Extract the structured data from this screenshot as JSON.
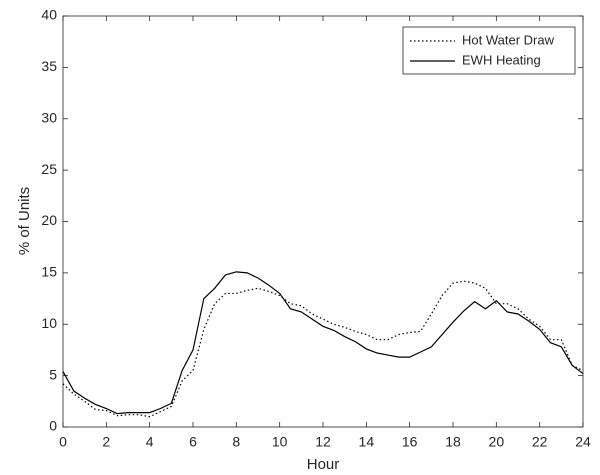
{
  "chart_data": {
    "type": "line",
    "xlabel": "Hour",
    "ylabel": "% of Units",
    "x": [
      0,
      0.5,
      1,
      1.5,
      2,
      2.5,
      3,
      3.5,
      4,
      4.5,
      5,
      5.5,
      6,
      6.5,
      7,
      7.5,
      8,
      8.5,
      9,
      9.5,
      10,
      10.5,
      11,
      11.5,
      12,
      12.5,
      13,
      13.5,
      14,
      14.5,
      15,
      15.5,
      16,
      16.5,
      17,
      17.5,
      18,
      18.5,
      19,
      19.5,
      20,
      20.5,
      21,
      21.5,
      22,
      22.5,
      23,
      23.5,
      24
    ],
    "series": [
      {
        "name": "Hot Water Draw",
        "color": "#000000",
        "style": "dotted",
        "values": [
          4.2,
          3.2,
          2.5,
          1.7,
          1.6,
          1.1,
          1.2,
          1.2,
          1.0,
          1.5,
          2.0,
          4.5,
          5.5,
          9.5,
          12.0,
          13.0,
          13.0,
          13.3,
          13.5,
          13.2,
          12.8,
          12.0,
          11.8,
          11.0,
          10.5,
          10.0,
          9.7,
          9.3,
          9.0,
          8.5,
          8.5,
          9.0,
          9.2,
          9.3,
          11.0,
          12.8,
          14.0,
          14.2,
          14.0,
          13.5,
          12.0,
          12.0,
          11.5,
          10.5,
          9.8,
          8.5,
          8.5,
          6.0,
          5.5
        ]
      },
      {
        "name": "EWH Heating",
        "color": "#000000",
        "style": "solid",
        "values": [
          5.4,
          3.5,
          2.8,
          2.2,
          1.8,
          1.3,
          1.4,
          1.4,
          1.4,
          1.8,
          2.3,
          5.5,
          7.5,
          12.5,
          13.5,
          14.8,
          15.1,
          15.0,
          14.5,
          13.8,
          13.0,
          11.5,
          11.2,
          10.5,
          9.8,
          9.4,
          8.8,
          8.3,
          7.6,
          7.2,
          7.0,
          6.8,
          6.8,
          7.3,
          7.8,
          9.0,
          10.2,
          11.3,
          12.2,
          11.5,
          12.3,
          11.2,
          11.0,
          10.3,
          9.5,
          8.2,
          7.8,
          6.0,
          5.2
        ]
      }
    ],
    "xlim": [
      0,
      24
    ],
    "xticks": [
      0,
      2,
      4,
      6,
      8,
      10,
      12,
      14,
      16,
      18,
      20,
      22,
      24
    ],
    "ylim": [
      0,
      40
    ],
    "yticks": [
      0,
      5,
      10,
      15,
      20,
      25,
      30,
      35,
      40
    ],
    "grid": false,
    "legend": "top-right"
  }
}
